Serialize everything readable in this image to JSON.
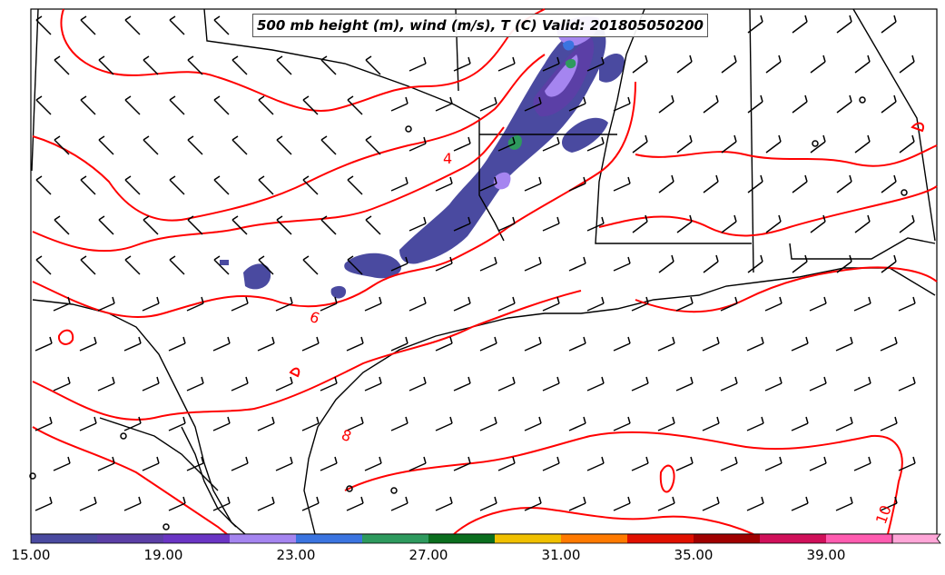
{
  "title": "500 mb height (m), wind (m/s), T (C) Valid: 201805050200",
  "contour_labels": [
    "4",
    "6",
    "8",
    "10"
  ],
  "colorbar": {
    "ticks": [
      "15.00",
      "19.00",
      "23.00",
      "27.00",
      "31.00",
      "35.00",
      "39.00"
    ],
    "colors": [
      "#4a4aa0",
      "#5b3fa6",
      "#6a35c4",
      "#a585f0",
      "#3b74e0",
      "#2e9a5e",
      "#0b6e1e",
      "#f0c000",
      "#ff7a00",
      "#e01000",
      "#a00000",
      "#d0105a",
      "#ff5cb0",
      "#ffa6d8"
    ]
  },
  "styles": {
    "temperature_contour_color": "#ff0000",
    "boundary_color": "#000000",
    "wind_barb_color": "#000000"
  }
}
